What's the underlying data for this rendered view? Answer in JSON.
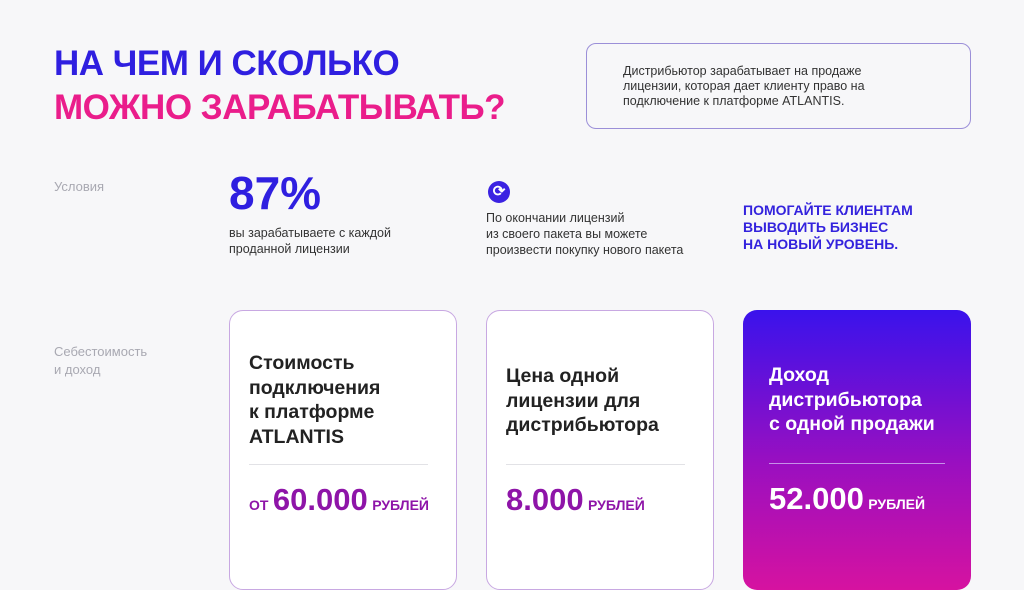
{
  "title": {
    "line1": "НА ЧЕМ И СКОЛЬКО",
    "line2": "МОЖНО ЗАРАБАТЫВАТЬ?"
  },
  "note": [
    "Дистрибьютор зарабатывает на продаже",
    "лицензии, которая дает клиенту право на",
    "подключение к платформе ATLANTIS."
  ],
  "conditions": {
    "label": "Условия",
    "percent": "87%",
    "percent_text": [
      "вы зарабатываете с каждой",
      "проданной лицензии"
    ],
    "icon": "refresh-icon",
    "renew_text": [
      "По окончании лицензий",
      "из своего пакета вы можете",
      "произвести покупку нового пакета"
    ],
    "cta": [
      "ПОМОГАЙТЕ КЛИЕНТАМ",
      "ВЫВОДИТЬ БИЗНЕС",
      "НА НОВЫЙ УРОВЕНЬ."
    ]
  },
  "cost": {
    "label": [
      "Себестоимость",
      "и доход"
    ]
  },
  "cards": [
    {
      "title": [
        "Стоимость",
        "подключения",
        "к платформе",
        "ATLANTIS"
      ],
      "prefix": "ОТ",
      "value": "60.000",
      "unit": "РУБЛЕЙ"
    },
    {
      "title": [
        "Цена одной",
        "лицензии для",
        "дистрибьютора"
      ],
      "value": "8.000",
      "unit": "РУБЛЕЙ"
    },
    {
      "title": [
        "Доход",
        "дистрибьютора",
        "с одной продажи"
      ],
      "value": "52.000",
      "unit": "РУБЛЕЙ"
    }
  ],
  "colors": {
    "blue": "#2f1fe0",
    "pink": "#ea1d8b",
    "purple": "#8e14a8"
  }
}
